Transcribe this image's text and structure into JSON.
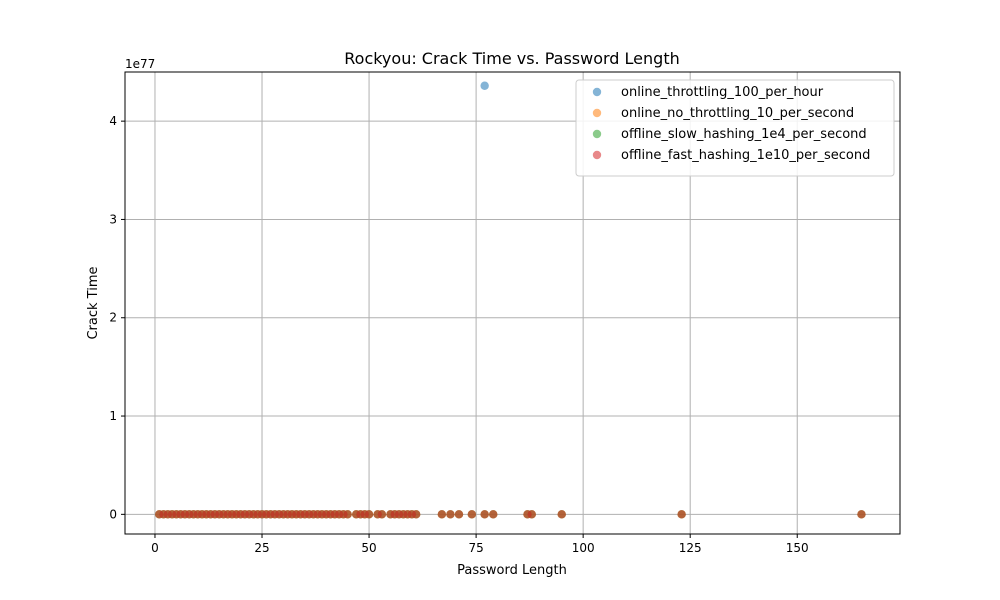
{
  "chart_data": {
    "type": "scatter",
    "title": "Rockyou: Crack Time vs. Password Length",
    "xlabel": "Password Length",
    "ylabel": "Crack Time",
    "y_exponent_label": "1e77",
    "y_scale_factor": 1e+77,
    "xlim": [
      -7,
      174
    ],
    "ylim": [
      -0.2,
      4.5
    ],
    "x_ticks": [
      0,
      25,
      50,
      75,
      100,
      125,
      150
    ],
    "y_ticks": [
      0,
      1,
      2,
      3,
      4
    ],
    "grid": true,
    "legend_position": "top-right",
    "series": [
      {
        "name": "online_throttling_100_per_hour",
        "color": "#1f77b4",
        "points": [
          [
            77,
            4.36
          ]
        ]
      },
      {
        "name": "online_no_throttling_10_per_second",
        "color": "#ff7f0e",
        "points": [
          [
            1,
            0
          ],
          [
            2,
            0
          ],
          [
            3,
            0
          ],
          [
            4,
            0
          ],
          [
            5,
            0
          ],
          [
            6,
            0
          ],
          [
            7,
            0
          ],
          [
            8,
            0
          ],
          [
            9,
            0
          ],
          [
            10,
            0
          ],
          [
            11,
            0
          ],
          [
            12,
            0
          ],
          [
            13,
            0
          ],
          [
            14,
            0
          ],
          [
            15,
            0
          ],
          [
            16,
            0
          ],
          [
            17,
            0
          ],
          [
            18,
            0
          ],
          [
            19,
            0
          ],
          [
            20,
            0
          ],
          [
            21,
            0
          ],
          [
            22,
            0
          ],
          [
            23,
            0
          ],
          [
            24,
            0
          ],
          [
            25,
            0
          ],
          [
            26,
            0
          ],
          [
            27,
            0
          ],
          [
            28,
            0
          ],
          [
            29,
            0
          ],
          [
            30,
            0
          ],
          [
            31,
            0
          ],
          [
            32,
            0
          ],
          [
            33,
            0
          ],
          [
            34,
            0
          ],
          [
            35,
            0
          ],
          [
            36,
            0
          ],
          [
            37,
            0
          ],
          [
            38,
            0
          ],
          [
            39,
            0
          ],
          [
            40,
            0
          ],
          [
            41,
            0
          ],
          [
            42,
            0
          ],
          [
            43,
            0
          ],
          [
            44,
            0
          ],
          [
            45,
            0
          ],
          [
            47,
            0
          ],
          [
            48,
            0
          ],
          [
            49,
            0
          ],
          [
            50,
            0
          ],
          [
            52,
            0
          ],
          [
            53,
            0
          ],
          [
            55,
            0
          ],
          [
            56,
            0
          ],
          [
            57,
            0
          ],
          [
            58,
            0
          ],
          [
            59,
            0
          ],
          [
            60,
            0
          ],
          [
            61,
            0
          ],
          [
            67,
            0
          ],
          [
            69,
            0
          ],
          [
            71,
            0
          ],
          [
            74,
            0
          ],
          [
            77,
            0
          ],
          [
            79,
            0
          ],
          [
            87,
            0
          ],
          [
            88,
            0
          ],
          [
            95,
            0
          ],
          [
            123,
            0
          ],
          [
            165,
            0
          ]
        ]
      },
      {
        "name": "offline_slow_hashing_1e4_per_second",
        "color": "#2ca02c",
        "points": [
          [
            1,
            0
          ],
          [
            2,
            0
          ],
          [
            3,
            0
          ],
          [
            4,
            0
          ],
          [
            5,
            0
          ],
          [
            6,
            0
          ],
          [
            7,
            0
          ],
          [
            8,
            0
          ],
          [
            9,
            0
          ],
          [
            10,
            0
          ],
          [
            11,
            0
          ],
          [
            12,
            0
          ],
          [
            13,
            0
          ],
          [
            14,
            0
          ],
          [
            15,
            0
          ],
          [
            16,
            0
          ],
          [
            17,
            0
          ],
          [
            18,
            0
          ],
          [
            19,
            0
          ],
          [
            20,
            0
          ],
          [
            21,
            0
          ],
          [
            22,
            0
          ],
          [
            23,
            0
          ],
          [
            24,
            0
          ],
          [
            25,
            0
          ],
          [
            26,
            0
          ],
          [
            27,
            0
          ],
          [
            28,
            0
          ],
          [
            29,
            0
          ],
          [
            30,
            0
          ],
          [
            31,
            0
          ],
          [
            32,
            0
          ],
          [
            33,
            0
          ],
          [
            34,
            0
          ],
          [
            35,
            0
          ],
          [
            36,
            0
          ],
          [
            37,
            0
          ],
          [
            38,
            0
          ],
          [
            39,
            0
          ],
          [
            40,
            0
          ],
          [
            41,
            0
          ],
          [
            42,
            0
          ],
          [
            43,
            0
          ],
          [
            44,
            0
          ],
          [
            45,
            0
          ],
          [
            47,
            0
          ],
          [
            48,
            0
          ],
          [
            49,
            0
          ],
          [
            50,
            0
          ],
          [
            52,
            0
          ],
          [
            53,
            0
          ],
          [
            55,
            0
          ],
          [
            56,
            0
          ],
          [
            57,
            0
          ],
          [
            58,
            0
          ],
          [
            59,
            0
          ],
          [
            60,
            0
          ],
          [
            61,
            0
          ],
          [
            67,
            0
          ],
          [
            69,
            0
          ],
          [
            71,
            0
          ],
          [
            74,
            0
          ],
          [
            77,
            0
          ],
          [
            79,
            0
          ],
          [
            87,
            0
          ],
          [
            88,
            0
          ],
          [
            95,
            0
          ],
          [
            123,
            0
          ],
          [
            165,
            0
          ]
        ]
      },
      {
        "name": "offline_fast_hashing_1e10_per_second",
        "color": "#d62728",
        "points": [
          [
            1,
            0
          ],
          [
            2,
            0
          ],
          [
            3,
            0
          ],
          [
            4,
            0
          ],
          [
            5,
            0
          ],
          [
            6,
            0
          ],
          [
            7,
            0
          ],
          [
            8,
            0
          ],
          [
            9,
            0
          ],
          [
            10,
            0
          ],
          [
            11,
            0
          ],
          [
            12,
            0
          ],
          [
            13,
            0
          ],
          [
            14,
            0
          ],
          [
            15,
            0
          ],
          [
            16,
            0
          ],
          [
            17,
            0
          ],
          [
            18,
            0
          ],
          [
            19,
            0
          ],
          [
            20,
            0
          ],
          [
            21,
            0
          ],
          [
            22,
            0
          ],
          [
            23,
            0
          ],
          [
            24,
            0
          ],
          [
            25,
            0
          ],
          [
            26,
            0
          ],
          [
            27,
            0
          ],
          [
            28,
            0
          ],
          [
            29,
            0
          ],
          [
            30,
            0
          ],
          [
            31,
            0
          ],
          [
            32,
            0
          ],
          [
            33,
            0
          ],
          [
            34,
            0
          ],
          [
            35,
            0
          ],
          [
            36,
            0
          ],
          [
            37,
            0
          ],
          [
            38,
            0
          ],
          [
            39,
            0
          ],
          [
            40,
            0
          ],
          [
            41,
            0
          ],
          [
            42,
            0
          ],
          [
            43,
            0
          ],
          [
            44,
            0
          ],
          [
            45,
            0
          ],
          [
            47,
            0
          ],
          [
            48,
            0
          ],
          [
            49,
            0
          ],
          [
            50,
            0
          ],
          [
            52,
            0
          ],
          [
            53,
            0
          ],
          [
            55,
            0
          ],
          [
            56,
            0
          ],
          [
            57,
            0
          ],
          [
            58,
            0
          ],
          [
            59,
            0
          ],
          [
            60,
            0
          ],
          [
            61,
            0
          ],
          [
            67,
            0
          ],
          [
            69,
            0
          ],
          [
            71,
            0
          ],
          [
            74,
            0
          ],
          [
            77,
            0
          ],
          [
            79,
            0
          ],
          [
            87,
            0
          ],
          [
            88,
            0
          ],
          [
            95,
            0
          ],
          [
            123,
            0
          ],
          [
            165,
            0
          ]
        ]
      }
    ]
  }
}
